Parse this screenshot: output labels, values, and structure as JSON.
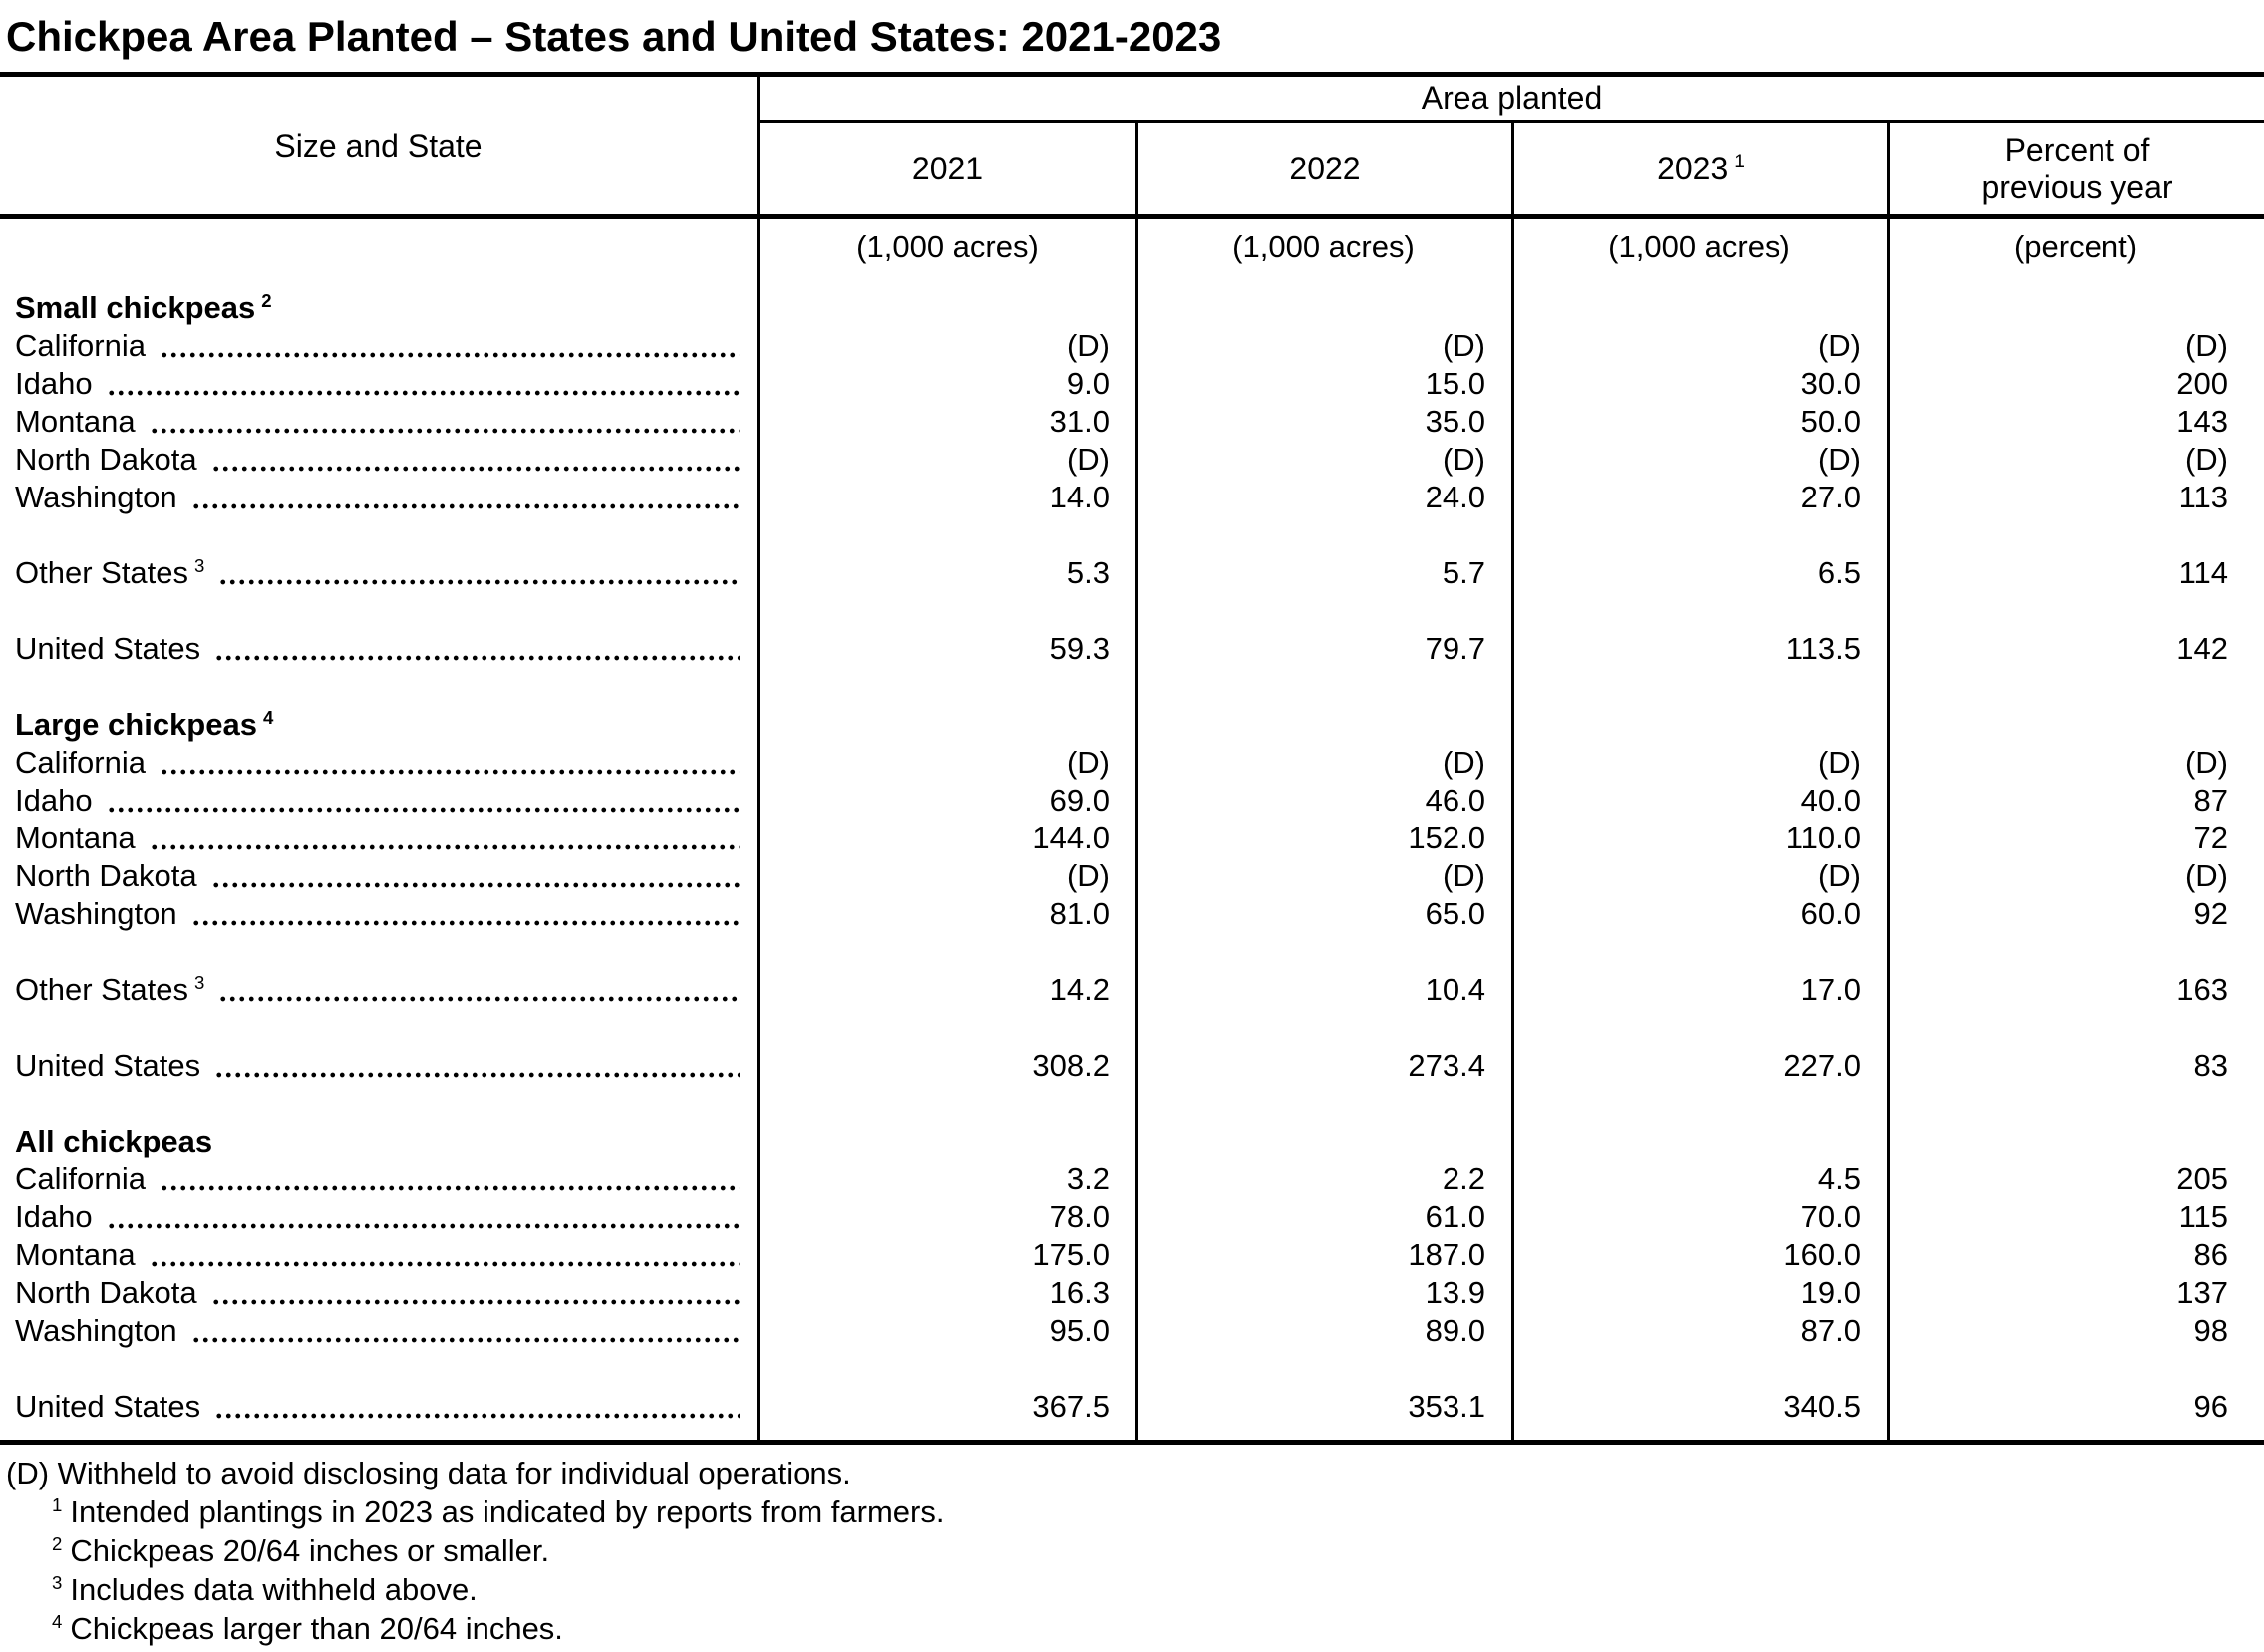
{
  "title": "Chickpea Area Planted – States and United States: 2021-2023",
  "table": {
    "row_axis_label": "Size and State",
    "span_header": "Area planted",
    "columns": [
      {
        "label": "2021",
        "sup": ""
      },
      {
        "label": "2022",
        "sup": ""
      },
      {
        "label": "2023",
        "sup": "1"
      },
      {
        "label": "Percent of previous year",
        "sup": ""
      }
    ],
    "units": [
      "(1,000 acres)",
      "(1,000 acres)",
      "(1,000 acres)",
      "(percent)"
    ],
    "sections": [
      {
        "heading": "Small chickpeas",
        "heading_sup": "2",
        "rows": [
          {
            "label": "California",
            "sup": "",
            "gap_before": false,
            "values": [
              "(D)",
              "(D)",
              "(D)",
              "(D)"
            ]
          },
          {
            "label": "Idaho",
            "sup": "",
            "gap_before": false,
            "values": [
              "9.0",
              "15.0",
              "30.0",
              "200"
            ]
          },
          {
            "label": "Montana",
            "sup": "",
            "gap_before": false,
            "values": [
              "31.0",
              "35.0",
              "50.0",
              "143"
            ]
          },
          {
            "label": "North Dakota",
            "sup": "",
            "gap_before": false,
            "values": [
              "(D)",
              "(D)",
              "(D)",
              "(D)"
            ]
          },
          {
            "label": "Washington",
            "sup": "",
            "gap_before": false,
            "values": [
              "14.0",
              "24.0",
              "27.0",
              "113"
            ]
          },
          {
            "label": "Other States",
            "sup": "3",
            "gap_before": true,
            "values": [
              "5.3",
              "5.7",
              "6.5",
              "114"
            ]
          },
          {
            "label": "United States",
            "sup": "",
            "gap_before": true,
            "values": [
              "59.3",
              "79.7",
              "113.5",
              "142"
            ]
          }
        ]
      },
      {
        "heading": "Large chickpeas",
        "heading_sup": "4",
        "rows": [
          {
            "label": "California",
            "sup": "",
            "gap_before": false,
            "values": [
              "(D)",
              "(D)",
              "(D)",
              "(D)"
            ]
          },
          {
            "label": "Idaho",
            "sup": "",
            "gap_before": false,
            "values": [
              "69.0",
              "46.0",
              "40.0",
              "87"
            ]
          },
          {
            "label": "Montana",
            "sup": "",
            "gap_before": false,
            "values": [
              "144.0",
              "152.0",
              "110.0",
              "72"
            ]
          },
          {
            "label": "North Dakota",
            "sup": "",
            "gap_before": false,
            "values": [
              "(D)",
              "(D)",
              "(D)",
              "(D)"
            ]
          },
          {
            "label": "Washington",
            "sup": "",
            "gap_before": false,
            "values": [
              "81.0",
              "65.0",
              "60.0",
              "92"
            ]
          },
          {
            "label": "Other States",
            "sup": "3",
            "gap_before": true,
            "values": [
              "14.2",
              "10.4",
              "17.0",
              "163"
            ]
          },
          {
            "label": "United States",
            "sup": "",
            "gap_before": true,
            "values": [
              "308.2",
              "273.4",
              "227.0",
              "83"
            ]
          }
        ]
      },
      {
        "heading": "All chickpeas",
        "heading_sup": "",
        "rows": [
          {
            "label": "California",
            "sup": "",
            "gap_before": false,
            "values": [
              "3.2",
              "2.2",
              "4.5",
              "205"
            ]
          },
          {
            "label": "Idaho",
            "sup": "",
            "gap_before": false,
            "values": [
              "78.0",
              "61.0",
              "70.0",
              "115"
            ]
          },
          {
            "label": "Montana",
            "sup": "",
            "gap_before": false,
            "values": [
              "175.0",
              "187.0",
              "160.0",
              "86"
            ]
          },
          {
            "label": "North Dakota",
            "sup": "",
            "gap_before": false,
            "values": [
              "16.3",
              "13.9",
              "19.0",
              "137"
            ]
          },
          {
            "label": "Washington",
            "sup": "",
            "gap_before": false,
            "values": [
              "95.0",
              "89.0",
              "87.0",
              "98"
            ]
          },
          {
            "label": "United States",
            "sup": "",
            "gap_before": true,
            "values": [
              "367.5",
              "353.1",
              "340.5",
              "96"
            ]
          }
        ]
      }
    ]
  },
  "footnotes": [
    {
      "sup": "",
      "text": "(D) Withheld to avoid disclosing data for individual operations."
    },
    {
      "sup": "1",
      "text": "Intended plantings in 2023 as indicated by reports from farmers."
    },
    {
      "sup": "2",
      "text": "Chickpeas 20/64 inches or smaller."
    },
    {
      "sup": "3",
      "text": "Includes data withheld above."
    },
    {
      "sup": "4",
      "text": "Chickpeas larger than 20/64 inches."
    }
  ]
}
